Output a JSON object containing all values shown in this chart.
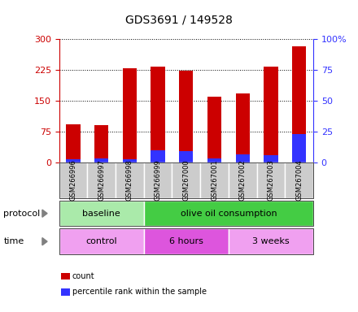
{
  "title": "GDS3691 / 149528",
  "samples": [
    "GSM266996",
    "GSM266997",
    "GSM266998",
    "GSM266999",
    "GSM267000",
    "GSM267001",
    "GSM267002",
    "GSM267003",
    "GSM267004"
  ],
  "red_values": [
    93,
    90,
    228,
    232,
    222,
    160,
    168,
    233,
    283
  ],
  "blue_values": [
    8,
    10,
    8,
    30,
    27,
    9,
    20,
    18,
    68
  ],
  "ylim_left": [
    0,
    300
  ],
  "ylim_right": [
    0,
    100
  ],
  "yticks_left": [
    0,
    75,
    150,
    225,
    300
  ],
  "yticks_right": [
    0,
    25,
    50,
    75,
    100
  ],
  "ytick_labels_right": [
    "0",
    "25",
    "50",
    "75",
    "100%"
  ],
  "protocol_groups": [
    {
      "label": "baseline",
      "start": 0,
      "end": 3,
      "color": "#aaeaaa"
    },
    {
      "label": "olive oil consumption",
      "start": 3,
      "end": 9,
      "color": "#44cc44"
    }
  ],
  "time_groups": [
    {
      "label": "control",
      "start": 0,
      "end": 3,
      "color": "#f0a0f0"
    },
    {
      "label": "6 hours",
      "start": 3,
      "end": 6,
      "color": "#dd55dd"
    },
    {
      "label": "3 weeks",
      "start": 6,
      "end": 9,
      "color": "#f0a0f0"
    }
  ],
  "bar_width": 0.5,
  "red_color": "#cc0000",
  "blue_color": "#3333ff",
  "left_axis_color": "#cc0000",
  "right_axis_color": "#3333ff",
  "sample_box_color": "#cccccc",
  "legend_count": "count",
  "legend_percentile": "percentile rank within the sample"
}
